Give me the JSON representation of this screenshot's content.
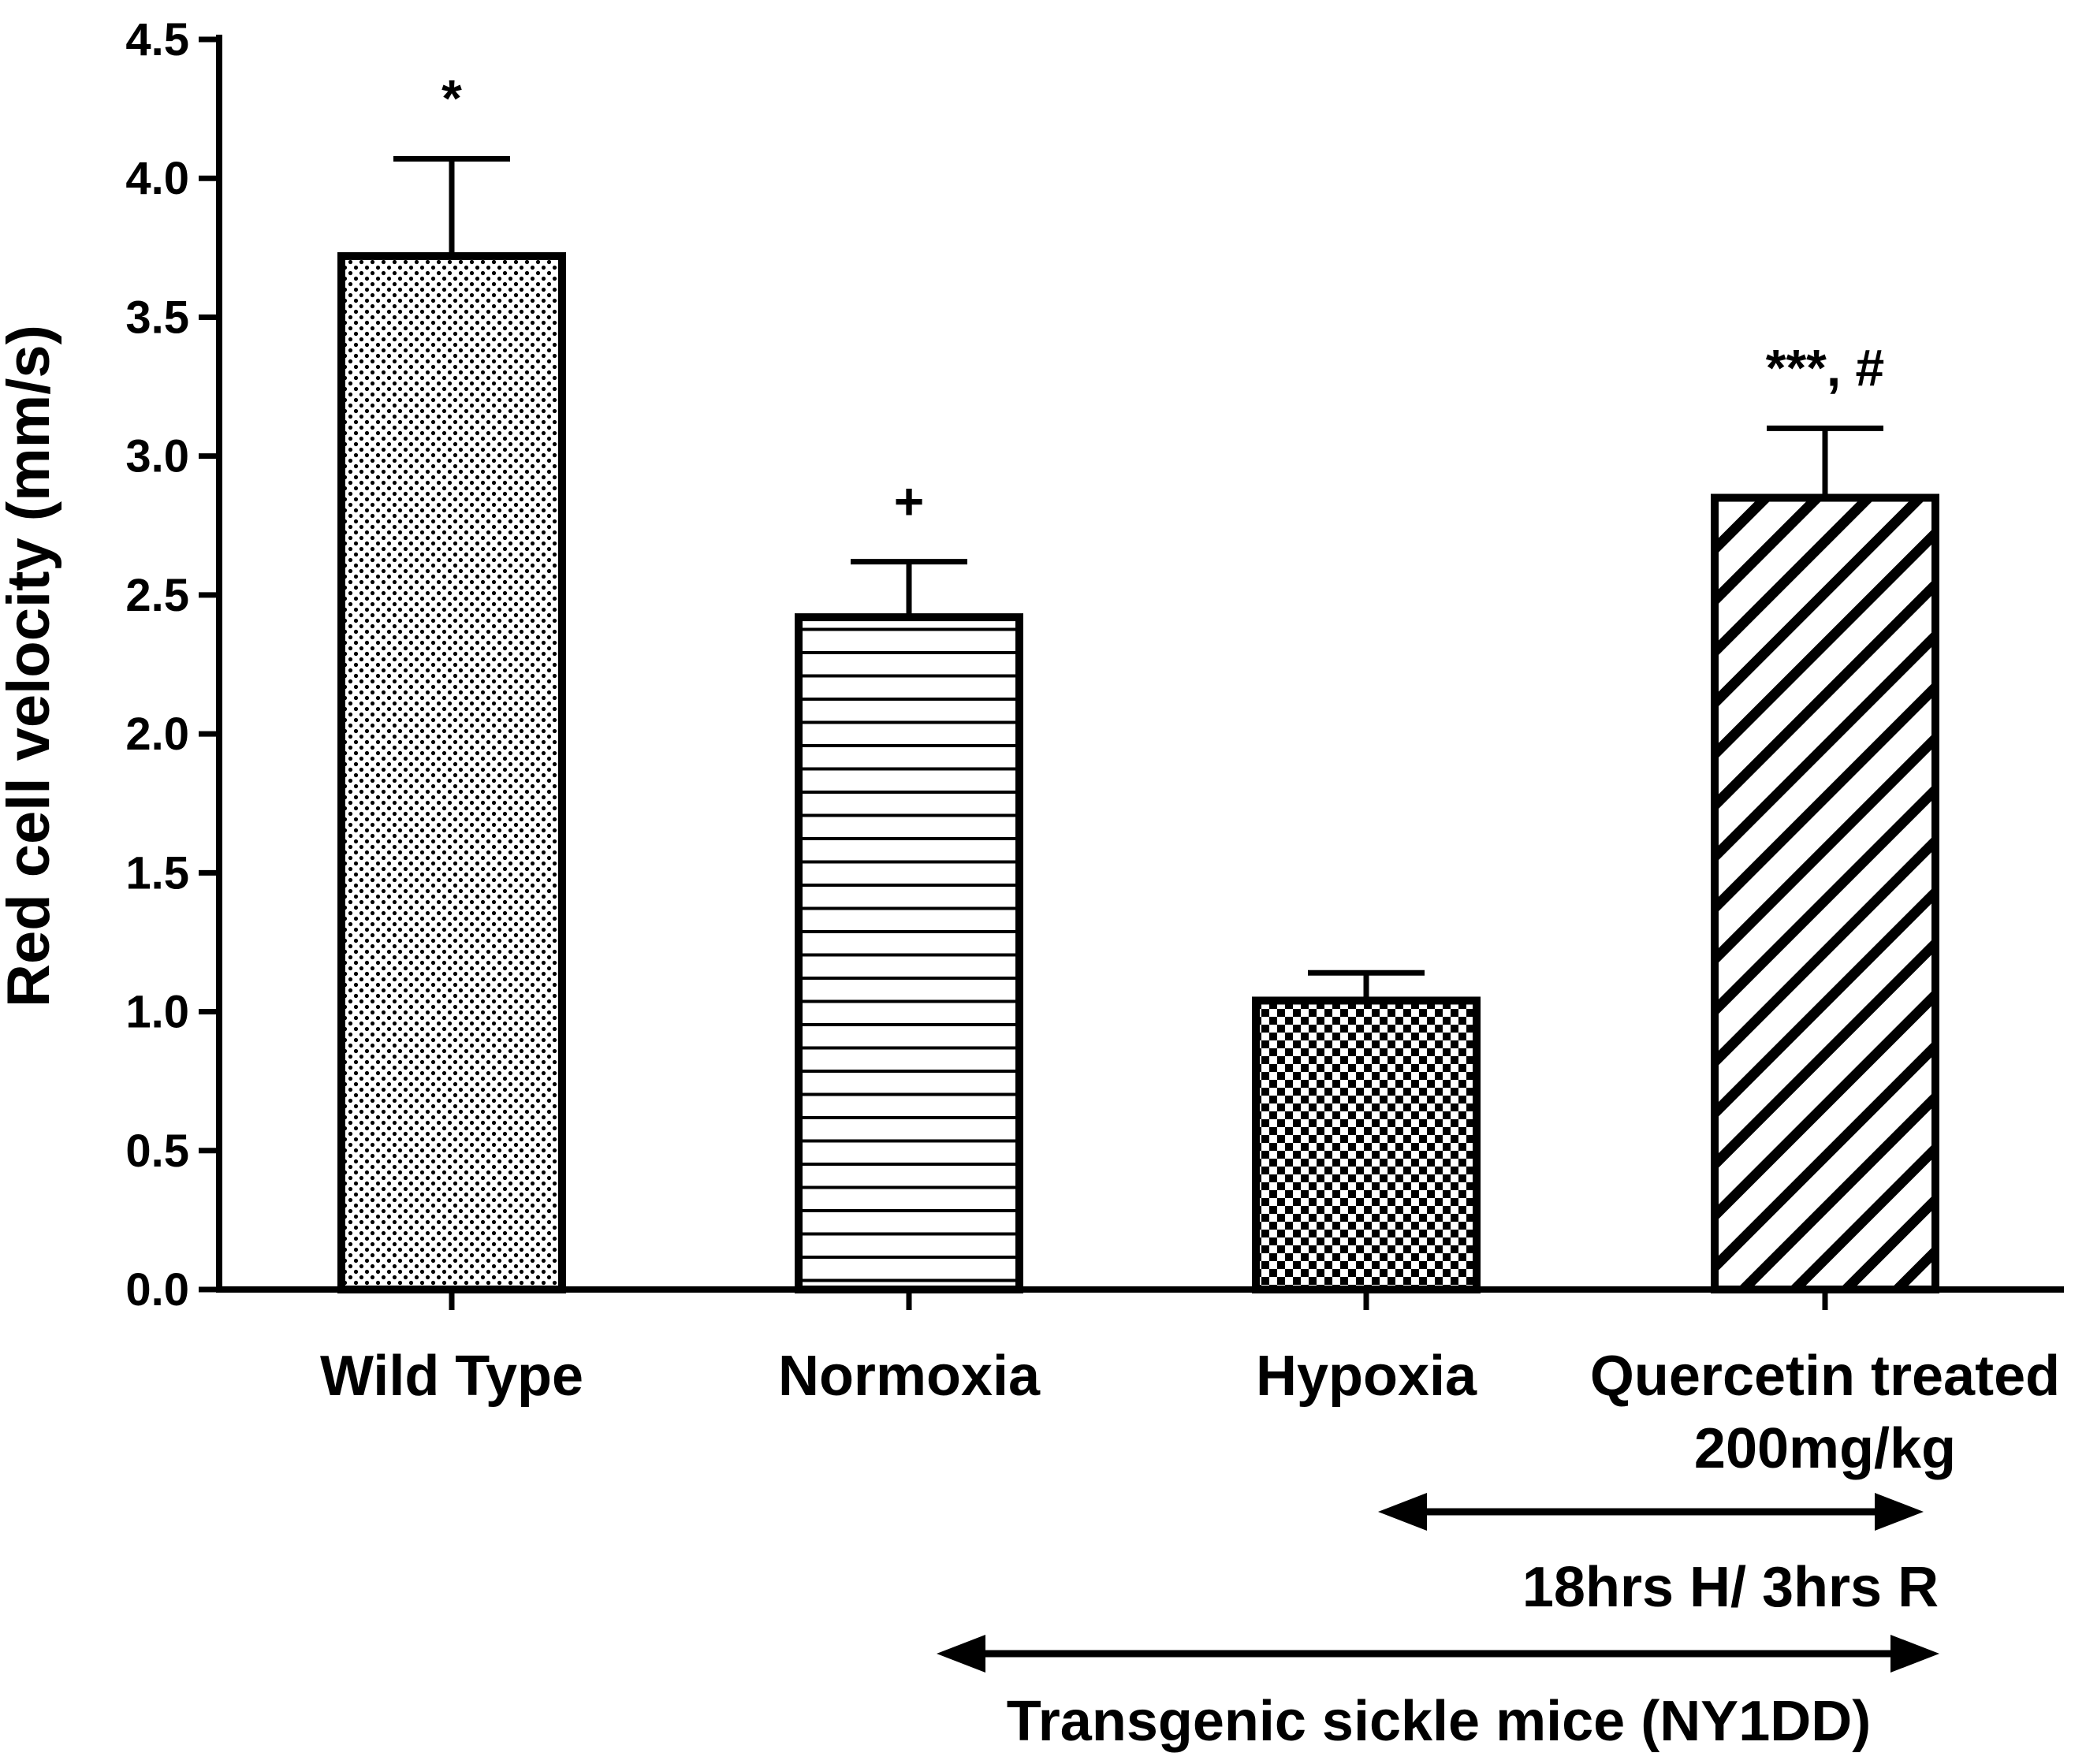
{
  "chart_data": {
    "type": "bar",
    "title": "",
    "xlabel": "",
    "ylabel": "Red cell velocity (mm/s)",
    "ylim": [
      0,
      4.5
    ],
    "yticks": [
      "0.0",
      "0.5",
      "1.0",
      "1.5",
      "2.0",
      "2.5",
      "3.0",
      "3.5",
      "4.0",
      "4.5"
    ],
    "ytick_values": [
      0,
      0.5,
      1.0,
      1.5,
      2.0,
      2.5,
      3.0,
      3.5,
      4.0,
      4.5
    ],
    "categories": [
      {
        "lines": [
          "Wild Type"
        ]
      },
      {
        "lines": [
          "Normoxia"
        ]
      },
      {
        "lines": [
          "Hypoxia"
        ]
      },
      {
        "lines": [
          "Quercetin treated",
          "200mg/kg"
        ]
      }
    ],
    "values": [
      3.72,
      2.42,
      1.04,
      2.85
    ],
    "errors": [
      0.35,
      0.2,
      0.1,
      0.25
    ],
    "patterns": [
      "dots",
      "hlines",
      "checker",
      "diagonal"
    ],
    "annotations": [
      "*",
      "+",
      "",
      "***, #"
    ],
    "brackets": [
      {
        "label": "18hrs H/ 3hrs R",
        "from_category": 2,
        "to_category": 3
      },
      {
        "label": "Transgenic sickle mice (NY1DD)",
        "from_category": 1,
        "to_category": 3
      }
    ],
    "colors": {
      "axis": "#000000",
      "bar_outline": "#000000",
      "fill": "#ffffff"
    }
  }
}
